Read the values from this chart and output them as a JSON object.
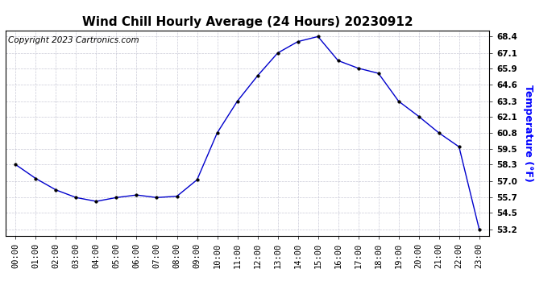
{
  "title": "Wind Chill Hourly Average (24 Hours) 20230912",
  "ylabel": "Temperature (°F)",
  "copyright": "Copyright 2023 Cartronics.com",
  "hours": [
    "00:00",
    "01:00",
    "02:00",
    "03:00",
    "04:00",
    "05:00",
    "06:00",
    "07:00",
    "08:00",
    "09:00",
    "10:00",
    "11:00",
    "12:00",
    "13:00",
    "14:00",
    "15:00",
    "16:00",
    "17:00",
    "18:00",
    "19:00",
    "20:00",
    "21:00",
    "22:00",
    "23:00"
  ],
  "values": [
    58.3,
    57.2,
    56.3,
    55.7,
    55.4,
    55.7,
    55.9,
    55.7,
    55.8,
    57.1,
    60.8,
    63.3,
    65.3,
    67.1,
    68.0,
    68.4,
    66.5,
    65.9,
    65.5,
    63.3,
    62.1,
    60.8,
    59.7,
    53.2
  ],
  "line_color": "#0000cc",
  "marker_color": "#000000",
  "title_color": "#000000",
  "ylabel_color": "#0000ff",
  "copyright_color": "#000000",
  "background_color": "#ffffff",
  "grid_color": "#bbbbcc",
  "ylim_min": 52.7,
  "ylim_max": 68.9,
  "yticks": [
    53.2,
    54.5,
    55.7,
    57.0,
    58.3,
    59.5,
    60.8,
    62.1,
    63.3,
    64.6,
    65.9,
    67.1,
    68.4
  ],
  "title_fontsize": 11,
  "ylabel_fontsize": 9,
  "copyright_fontsize": 7.5,
  "tick_fontsize": 7.5
}
